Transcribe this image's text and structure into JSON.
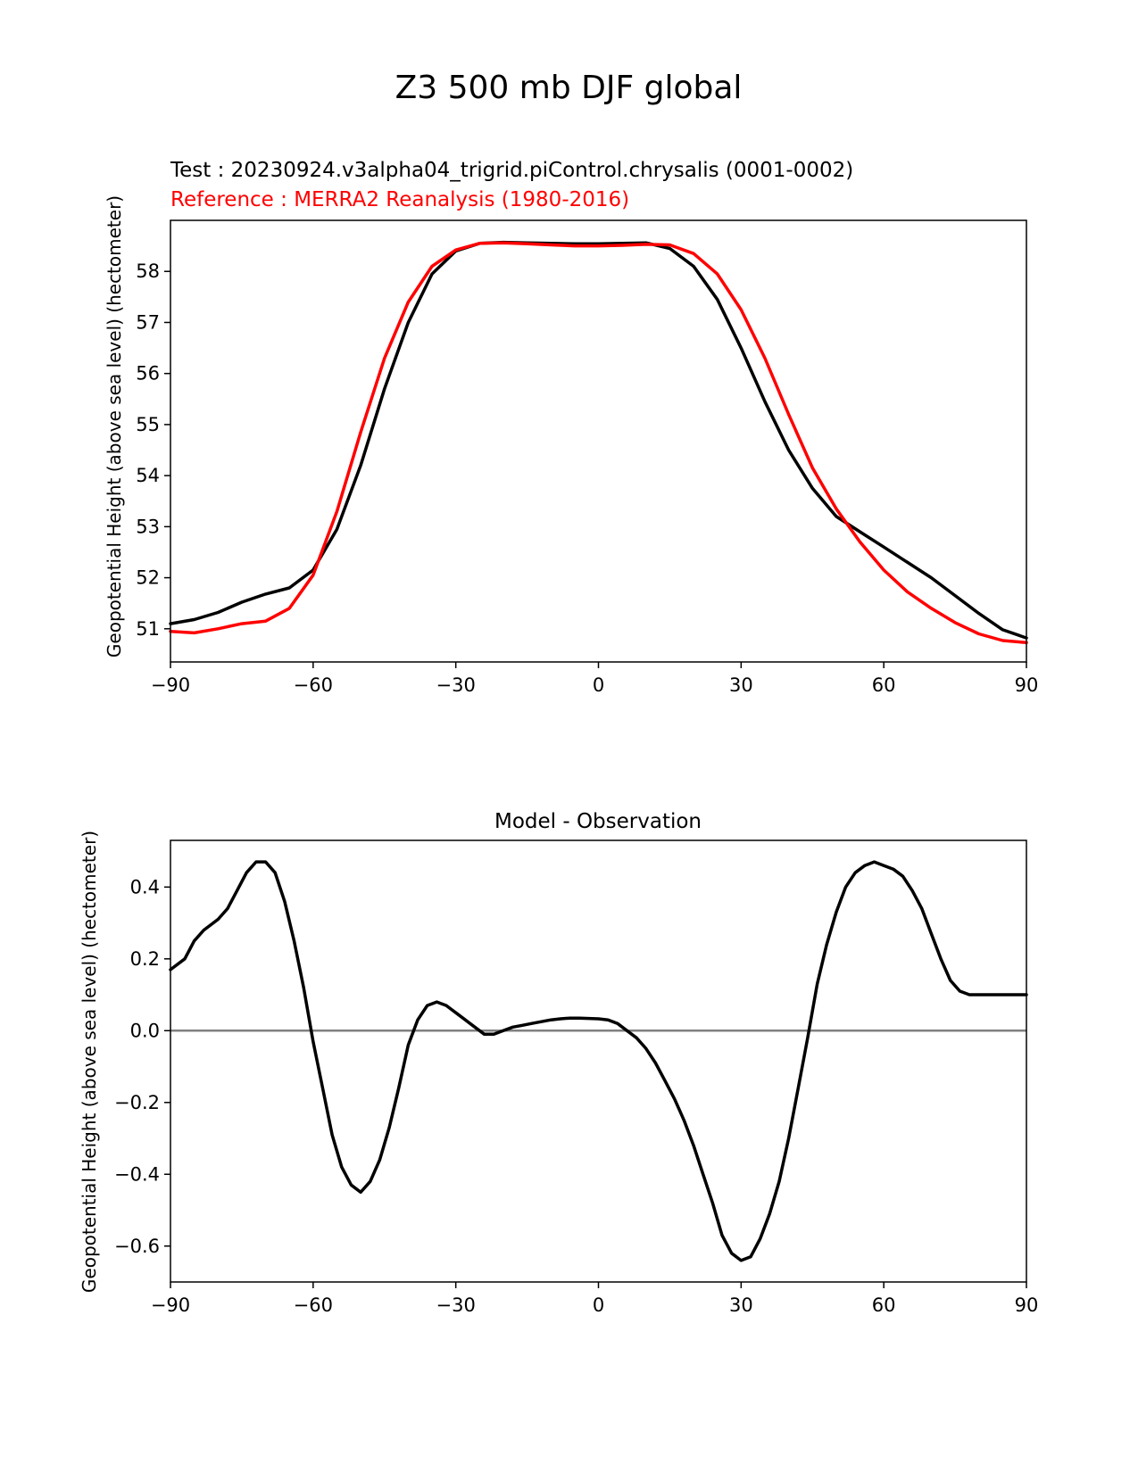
{
  "figure": {
    "title": "Z3 500 mb DJF global"
  },
  "chart_data": [
    {
      "type": "line",
      "test_label": "Test : 20230924.v3alpha04_trigrid.piControl.chrysalis (0001-0002)",
      "reference_label": "Reference : MERRA2 Reanalysis (1980-2016)",
      "xlabel": "",
      "ylabel": "Geopotential Height (above sea level) (hectometer)",
      "xlim": [
        -90,
        90
      ],
      "ylim": [
        50.35,
        59.0
      ],
      "xticks": [
        -90,
        -60,
        -30,
        0,
        30,
        60,
        90
      ],
      "xtick_labels": [
        "−90",
        "−60",
        "−30",
        "0",
        "30",
        "60",
        "90"
      ],
      "yticks": [
        51,
        52,
        53,
        54,
        55,
        56,
        57,
        58
      ],
      "ytick_labels": [
        "51",
        "52",
        "53",
        "54",
        "55",
        "56",
        "57",
        "58"
      ],
      "grid": false,
      "series": [
        {
          "color": "#000000",
          "x": [
            -90,
            -85,
            -80,
            -75,
            -70,
            -65,
            -60,
            -55,
            -50,
            -45,
            -40,
            -35,
            -30,
            -25,
            -20,
            -15,
            -10,
            -5,
            0,
            5,
            10,
            15,
            20,
            25,
            30,
            35,
            40,
            45,
            50,
            55,
            60,
            65,
            70,
            75,
            80,
            85,
            90
          ],
          "y": [
            51.1,
            51.18,
            51.32,
            51.52,
            51.68,
            51.8,
            52.15,
            52.95,
            54.2,
            55.7,
            57.0,
            57.95,
            58.4,
            58.55,
            58.57,
            58.56,
            58.55,
            58.54,
            58.54,
            58.55,
            58.56,
            58.45,
            58.1,
            57.45,
            56.5,
            55.45,
            54.5,
            53.75,
            53.2,
            52.9,
            52.6,
            52.3,
            52.0,
            51.65,
            51.3,
            50.98,
            50.82
          ]
        },
        {
          "color": "#ff0000",
          "x": [
            -90,
            -85,
            -80,
            -75,
            -70,
            -65,
            -60,
            -55,
            -50,
            -45,
            -40,
            -35,
            -30,
            -25,
            -20,
            -15,
            -10,
            -5,
            0,
            5,
            10,
            15,
            20,
            25,
            30,
            35,
            40,
            45,
            50,
            55,
            60,
            65,
            70,
            75,
            80,
            85,
            90
          ],
          "y": [
            50.95,
            50.92,
            51.0,
            51.1,
            51.15,
            51.4,
            52.05,
            53.3,
            54.85,
            56.3,
            57.4,
            58.1,
            58.42,
            58.55,
            58.56,
            58.54,
            58.52,
            58.5,
            58.5,
            58.51,
            58.53,
            58.52,
            58.35,
            57.95,
            57.25,
            56.3,
            55.2,
            54.15,
            53.35,
            52.7,
            52.15,
            51.72,
            51.4,
            51.12,
            50.9,
            50.77,
            50.73
          ]
        }
      ]
    },
    {
      "type": "line",
      "title": "Model - Observation",
      "xlabel": "",
      "ylabel": "Geopotential Height (above sea level) (hectometer)",
      "xlim": [
        -90,
        90
      ],
      "ylim": [
        -0.7,
        0.53
      ],
      "xticks": [
        -90,
        -60,
        -30,
        0,
        30,
        60,
        90
      ],
      "xtick_labels": [
        "−90",
        "−60",
        "−30",
        "0",
        "30",
        "60",
        "90"
      ],
      "yticks": [
        -0.6,
        -0.4,
        -0.2,
        0.0,
        0.2,
        0.4
      ],
      "ytick_labels": [
        "−0.6",
        "−0.4",
        "−0.2",
        "0.0",
        "0.2",
        "0.4"
      ],
      "grid": false,
      "zero_line_color": "#808080",
      "series": [
        {
          "color": "#000000",
          "x": [
            -90,
            -87,
            -85,
            -83,
            -80,
            -78,
            -76,
            -74,
            -72,
            -70,
            -68,
            -66,
            -64,
            -62,
            -60,
            -58,
            -56,
            -54,
            -52,
            -50,
            -48,
            -46,
            -44,
            -42,
            -40,
            -38,
            -36,
            -34,
            -32,
            -30,
            -28,
            -26,
            -24,
            -22,
            -20,
            -18,
            -16,
            -14,
            -12,
            -10,
            -8,
            -6,
            -4,
            -2,
            0,
            2,
            4,
            6,
            8,
            10,
            12,
            14,
            16,
            18,
            20,
            22,
            24,
            26,
            28,
            30,
            32,
            34,
            36,
            38,
            40,
            42,
            44,
            46,
            48,
            50,
            52,
            54,
            56,
            58,
            60,
            62,
            64,
            66,
            68,
            70,
            72,
            74,
            76,
            78,
            80,
            82,
            84,
            86,
            88,
            90
          ],
          "y": [
            0.17,
            0.2,
            0.25,
            0.28,
            0.31,
            0.34,
            0.39,
            0.44,
            0.47,
            0.47,
            0.44,
            0.36,
            0.25,
            0.12,
            -0.03,
            -0.16,
            -0.29,
            -0.38,
            -0.43,
            -0.45,
            -0.42,
            -0.36,
            -0.27,
            -0.16,
            -0.04,
            0.03,
            0.07,
            0.08,
            0.07,
            0.05,
            0.03,
            0.01,
            -0.01,
            -0.01,
            0.0,
            0.01,
            0.015,
            0.02,
            0.025,
            0.03,
            0.033,
            0.035,
            0.035,
            0.034,
            0.033,
            0.03,
            0.02,
            0.0,
            -0.02,
            -0.05,
            -0.09,
            -0.14,
            -0.19,
            -0.25,
            -0.32,
            -0.4,
            -0.48,
            -0.57,
            -0.62,
            -0.64,
            -0.63,
            -0.58,
            -0.51,
            -0.42,
            -0.3,
            -0.16,
            -0.02,
            0.13,
            0.24,
            0.33,
            0.4,
            0.44,
            0.46,
            0.47,
            0.46,
            0.45,
            0.43,
            0.39,
            0.34,
            0.27,
            0.2,
            0.14,
            0.11,
            0.1,
            0.1,
            0.1,
            0.1,
            0.1,
            0.1,
            0.1
          ]
        }
      ]
    }
  ]
}
